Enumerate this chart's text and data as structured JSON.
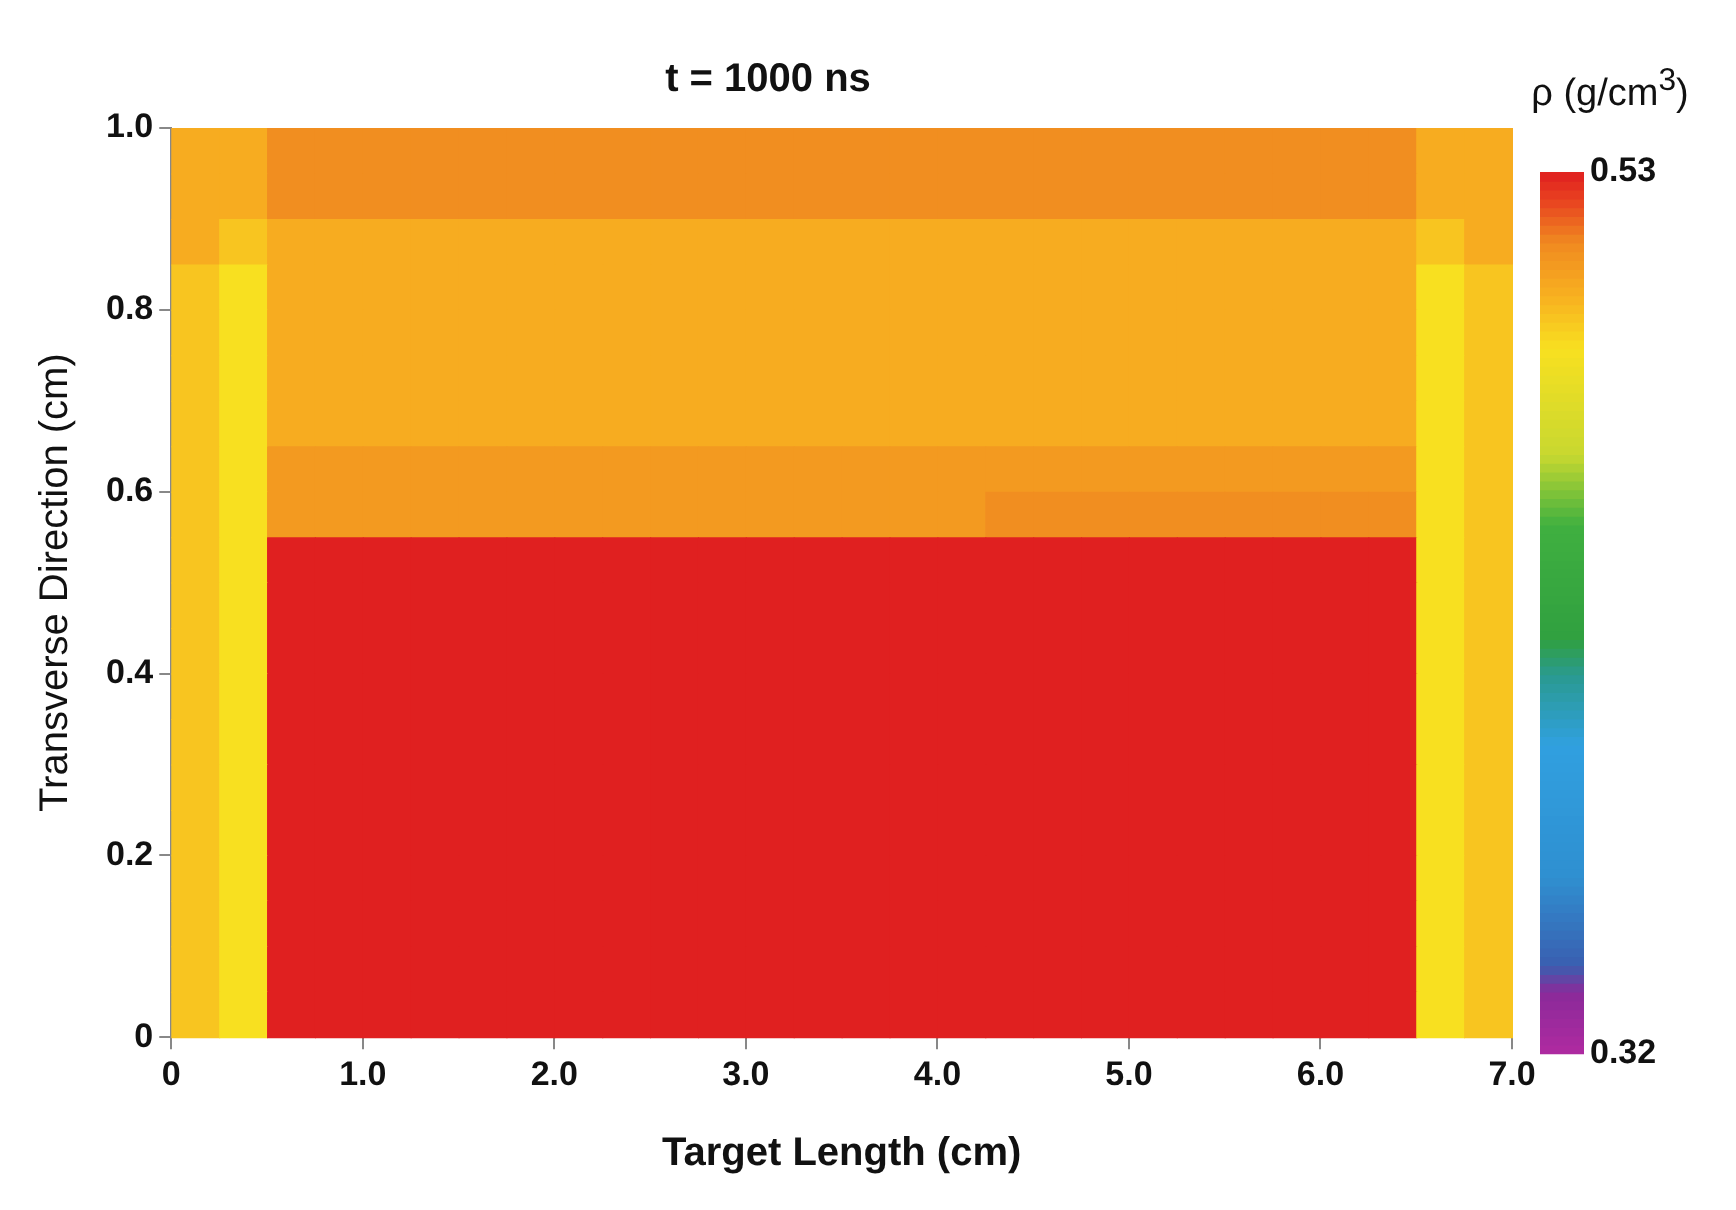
{
  "chart_data": {
    "type": "heatmap",
    "title": "t = 1000 ns",
    "xlabel": "Target Length (cm)",
    "ylabel": "Transverse Direction (cm)",
    "clabel": "ρ (g/cm$^{3}$)",
    "x": [
      0.125,
      0.375,
      0.625,
      0.875,
      1.125,
      1.375,
      1.625,
      1.875,
      2.125,
      2.375,
      2.625,
      2.875,
      3.125,
      3.375,
      3.625,
      3.875,
      4.125,
      4.375,
      4.625,
      4.875,
      5.125,
      5.375,
      5.625,
      5.875,
      6.125,
      6.375,
      6.625,
      6.875
    ],
    "y": [
      0.975,
      0.925,
      0.875,
      0.825,
      0.775,
      0.725,
      0.675,
      0.625,
      0.575,
      0.525,
      0.475,
      0.425,
      0.375,
      0.325,
      0.275,
      0.225,
      0.175,
      0.125,
      0.075,
      0.025
    ],
    "xlim": [
      0,
      7
    ],
    "ylim": [
      0,
      1
    ],
    "xticks": [
      0,
      {
        "value": 1,
        "label": "1.0"
      },
      {
        "value": 2,
        "label": "2.0"
      },
      {
        "value": 3,
        "label": "3.0"
      },
      {
        "value": 4,
        "label": "4.0"
      },
      {
        "value": 5,
        "label": "5.0"
      },
      {
        "value": 6,
        "label": "6.0"
      },
      {
        "value": 7,
        "label": "7.0"
      }
    ],
    "yticks": [
      0,
      0.2,
      0.4,
      0.6,
      0.8,
      {
        "value": 1,
        "label": "1.0"
      }
    ],
    "clim": [
      0.32,
      0.53
    ],
    "cticks": [
      0.32,
      0.53
    ],
    "grid": false,
    "cells": [
      [
        0.502,
        0.502,
        0.512,
        0.512,
        0.512,
        0.512,
        0.512,
        0.512,
        0.512,
        0.512,
        0.512,
        0.512,
        0.512,
        0.512,
        0.512,
        0.512,
        0.512,
        0.512,
        0.512,
        0.512,
        0.512,
        0.512,
        0.512,
        0.512,
        0.512,
        0.512,
        0.502,
        0.502
      ],
      [
        0.502,
        0.502,
        0.512,
        0.512,
        0.512,
        0.512,
        0.512,
        0.512,
        0.512,
        0.512,
        0.512,
        0.512,
        0.512,
        0.512,
        0.512,
        0.512,
        0.512,
        0.512,
        0.512,
        0.512,
        0.512,
        0.512,
        0.512,
        0.512,
        0.512,
        0.512,
        0.502,
        0.502
      ],
      [
        0.502,
        0.495,
        0.502,
        0.502,
        0.502,
        0.502,
        0.502,
        0.502,
        0.502,
        0.502,
        0.502,
        0.502,
        0.502,
        0.502,
        0.502,
        0.502,
        0.502,
        0.502,
        0.502,
        0.502,
        0.502,
        0.502,
        0.502,
        0.502,
        0.502,
        0.502,
        0.495,
        0.502
      ],
      [
        0.495,
        0.488,
        0.502,
        0.502,
        0.502,
        0.502,
        0.502,
        0.502,
        0.502,
        0.502,
        0.502,
        0.502,
        0.502,
        0.502,
        0.502,
        0.502,
        0.502,
        0.502,
        0.502,
        0.502,
        0.502,
        0.502,
        0.502,
        0.502,
        0.502,
        0.502,
        0.488,
        0.495
      ],
      [
        0.495,
        0.488,
        0.502,
        0.502,
        0.502,
        0.502,
        0.502,
        0.502,
        0.502,
        0.502,
        0.502,
        0.502,
        0.502,
        0.502,
        0.502,
        0.502,
        0.502,
        0.502,
        0.502,
        0.502,
        0.502,
        0.502,
        0.502,
        0.502,
        0.502,
        0.502,
        0.488,
        0.495
      ],
      [
        0.495,
        0.488,
        0.502,
        0.502,
        0.502,
        0.502,
        0.502,
        0.502,
        0.502,
        0.502,
        0.502,
        0.502,
        0.502,
        0.502,
        0.502,
        0.502,
        0.502,
        0.502,
        0.502,
        0.502,
        0.502,
        0.502,
        0.502,
        0.502,
        0.502,
        0.502,
        0.488,
        0.495
      ],
      [
        0.495,
        0.488,
        0.502,
        0.502,
        0.502,
        0.502,
        0.502,
        0.502,
        0.502,
        0.502,
        0.502,
        0.502,
        0.502,
        0.502,
        0.502,
        0.502,
        0.502,
        0.502,
        0.502,
        0.502,
        0.502,
        0.502,
        0.502,
        0.502,
        0.502,
        0.502,
        0.488,
        0.495
      ],
      [
        0.495,
        0.488,
        0.508,
        0.508,
        0.508,
        0.508,
        0.508,
        0.508,
        0.508,
        0.508,
        0.508,
        0.508,
        0.508,
        0.508,
        0.508,
        0.508,
        0.508,
        0.508,
        0.508,
        0.508,
        0.508,
        0.508,
        0.508,
        0.508,
        0.508,
        0.508,
        0.488,
        0.495
      ],
      [
        0.495,
        0.488,
        0.508,
        0.508,
        0.508,
        0.508,
        0.508,
        0.508,
        0.508,
        0.508,
        0.508,
        0.508,
        0.508,
        0.508,
        0.508,
        0.508,
        0.508,
        0.512,
        0.512,
        0.512,
        0.512,
        0.512,
        0.512,
        0.512,
        0.512,
        0.512,
        0.488,
        0.495
      ],
      [
        0.495,
        0.488,
        0.53,
        0.53,
        0.53,
        0.53,
        0.53,
        0.53,
        0.53,
        0.53,
        0.53,
        0.53,
        0.53,
        0.53,
        0.53,
        0.53,
        0.53,
        0.53,
        0.53,
        0.53,
        0.53,
        0.53,
        0.53,
        0.53,
        0.53,
        0.53,
        0.488,
        0.495
      ],
      [
        0.495,
        0.488,
        0.53,
        0.53,
        0.53,
        0.53,
        0.53,
        0.53,
        0.53,
        0.53,
        0.53,
        0.53,
        0.53,
        0.53,
        0.53,
        0.53,
        0.53,
        0.53,
        0.53,
        0.53,
        0.53,
        0.53,
        0.53,
        0.53,
        0.53,
        0.53,
        0.488,
        0.495
      ],
      [
        0.495,
        0.488,
        0.53,
        0.53,
        0.53,
        0.53,
        0.53,
        0.53,
        0.53,
        0.53,
        0.53,
        0.53,
        0.53,
        0.53,
        0.53,
        0.53,
        0.53,
        0.53,
        0.53,
        0.53,
        0.53,
        0.53,
        0.53,
        0.53,
        0.53,
        0.53,
        0.488,
        0.495
      ],
      [
        0.495,
        0.488,
        0.53,
        0.53,
        0.53,
        0.53,
        0.53,
        0.53,
        0.53,
        0.53,
        0.53,
        0.53,
        0.53,
        0.53,
        0.53,
        0.53,
        0.53,
        0.53,
        0.53,
        0.53,
        0.53,
        0.53,
        0.53,
        0.53,
        0.53,
        0.53,
        0.488,
        0.495
      ],
      [
        0.495,
        0.488,
        0.53,
        0.53,
        0.53,
        0.53,
        0.53,
        0.53,
        0.53,
        0.53,
        0.53,
        0.53,
        0.53,
        0.53,
        0.53,
        0.53,
        0.53,
        0.53,
        0.53,
        0.53,
        0.53,
        0.53,
        0.53,
        0.53,
        0.53,
        0.53,
        0.488,
        0.495
      ],
      [
        0.495,
        0.488,
        0.53,
        0.53,
        0.53,
        0.53,
        0.53,
        0.53,
        0.53,
        0.53,
        0.53,
        0.53,
        0.53,
        0.53,
        0.53,
        0.53,
        0.53,
        0.53,
        0.53,
        0.53,
        0.53,
        0.53,
        0.53,
        0.53,
        0.53,
        0.53,
        0.488,
        0.495
      ],
      [
        0.495,
        0.488,
        0.53,
        0.53,
        0.53,
        0.53,
        0.53,
        0.53,
        0.53,
        0.53,
        0.53,
        0.53,
        0.53,
        0.53,
        0.53,
        0.53,
        0.53,
        0.53,
        0.53,
        0.53,
        0.53,
        0.53,
        0.53,
        0.53,
        0.53,
        0.53,
        0.488,
        0.495
      ],
      [
        0.495,
        0.488,
        0.53,
        0.53,
        0.53,
        0.53,
        0.53,
        0.53,
        0.53,
        0.53,
        0.53,
        0.53,
        0.53,
        0.53,
        0.53,
        0.53,
        0.53,
        0.53,
        0.53,
        0.53,
        0.53,
        0.53,
        0.53,
        0.53,
        0.53,
        0.53,
        0.488,
        0.495
      ],
      [
        0.495,
        0.488,
        0.53,
        0.53,
        0.53,
        0.53,
        0.53,
        0.53,
        0.53,
        0.53,
        0.53,
        0.53,
        0.53,
        0.53,
        0.53,
        0.53,
        0.53,
        0.53,
        0.53,
        0.53,
        0.53,
        0.53,
        0.53,
        0.53,
        0.53,
        0.53,
        0.488,
        0.495
      ],
      [
        0.495,
        0.488,
        0.53,
        0.53,
        0.53,
        0.53,
        0.53,
        0.53,
        0.53,
        0.53,
        0.53,
        0.53,
        0.53,
        0.53,
        0.53,
        0.53,
        0.53,
        0.53,
        0.53,
        0.53,
        0.53,
        0.53,
        0.53,
        0.53,
        0.53,
        0.53,
        0.488,
        0.495
      ],
      [
        0.495,
        0.488,
        0.53,
        0.53,
        0.53,
        0.53,
        0.53,
        0.53,
        0.53,
        0.53,
        0.53,
        0.53,
        0.53,
        0.53,
        0.53,
        0.53,
        0.53,
        0.53,
        0.53,
        0.53,
        0.53,
        0.53,
        0.53,
        0.53,
        0.53,
        0.53,
        0.488,
        0.495
      ]
    ]
  }
}
